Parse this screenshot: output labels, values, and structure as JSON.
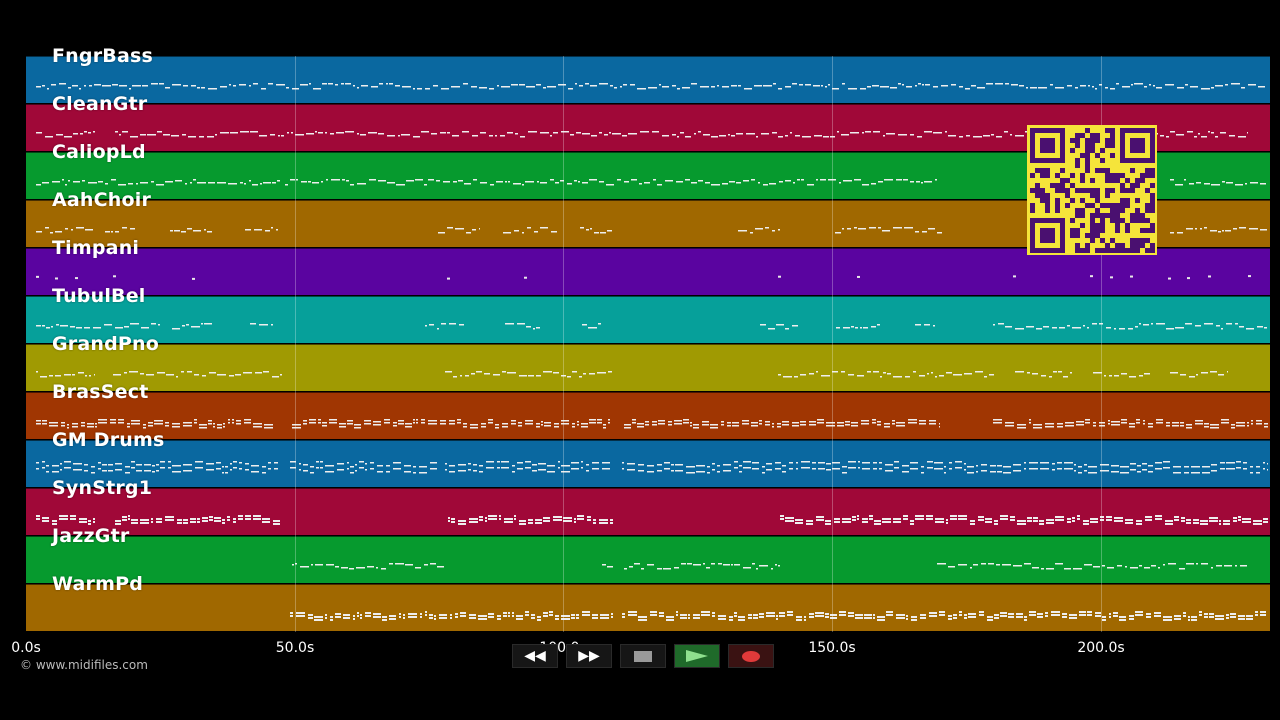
{
  "tracks": [
    {
      "label": "FngrBass",
      "color": "#0a68a0",
      "pattern": "bass"
    },
    {
      "label": "CleanGtr",
      "color": "#a00838",
      "pattern": "ticks"
    },
    {
      "label": "CaliopLd",
      "color": "#069a2e",
      "pattern": "wave"
    },
    {
      "label": "AahChoir",
      "color": "#a06800",
      "pattern": "sparse"
    },
    {
      "label": "Timpani",
      "color": "#5a04a0",
      "pattern": "dots"
    },
    {
      "label": "TubulBel",
      "color": "#06a09a",
      "pattern": "bell"
    },
    {
      "label": "GrandPno",
      "color": "#a09a02",
      "pattern": "piano"
    },
    {
      "label": "BrasSect",
      "color": "#a03602",
      "pattern": "brass"
    },
    {
      "label": "GM Drums",
      "color": "#0a68a0",
      "pattern": "drums"
    },
    {
      "label": "SynStrg1",
      "color": "#a00838",
      "pattern": "strings"
    },
    {
      "label": "JazzGtr",
      "color": "#069a2e",
      "pattern": "jazz"
    },
    {
      "label": "WarmPd",
      "color": "#a06800",
      "pattern": "pad"
    }
  ],
  "timeline": {
    "ticks": [
      "0.0s",
      "50.0s",
      "100.0s",
      "150.0s",
      "200.0s"
    ]
  },
  "copyright": "© www.midifiles.com",
  "transport": {
    "rewind_label": "◀◀",
    "forward_label": "▶▶",
    "stop_icon": "stop-icon",
    "play_icon": "play-icon",
    "record_icon": "record-icon"
  },
  "qr_icon": "qr-code-icon"
}
